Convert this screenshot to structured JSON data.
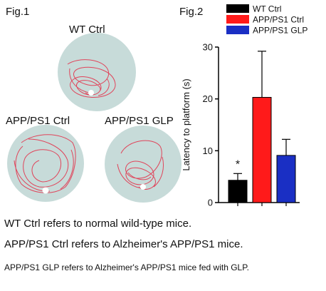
{
  "fig1": {
    "label": "Fig.1",
    "mazes": [
      {
        "title": "WT Ctrl"
      },
      {
        "title": "APP/PS1 Ctrl"
      },
      {
        "title": "APP/PS1 GLP"
      }
    ]
  },
  "fig2": {
    "label": "Fig.2"
  },
  "captions": [
    "WT Ctrl refers to normal wild-type mice.",
    "APP/PS1 Ctrl refers to Alzheimer's APP/PS1 mice.",
    "APP/PS1 GLP refers to Alzheimer's APP/PS1 mice fed with GLP."
  ],
  "colors": {
    "pool": "#c7dbd9",
    "path": "#e0445a",
    "wt": "#000000",
    "app": "#ff1a1a",
    "glp": "#1a2fc4"
  },
  "chart_data": {
    "type": "bar",
    "categories": [
      "WT Ctrl",
      "APP/PS1 Ctrl",
      "APP/PS1 GLP"
    ],
    "values": [
      4.3,
      20.3,
      9.1
    ],
    "errors": [
      1.3,
      8.9,
      3.1
    ],
    "colors": [
      "#000000",
      "#ff1a1a",
      "#1a2fc4"
    ],
    "ylabel": "Latency to platform (s)",
    "ylim": [
      0,
      30
    ],
    "yticks": [
      0,
      10,
      20,
      30
    ],
    "annotations": [
      {
        "category": "WT Ctrl",
        "text": "*"
      }
    ],
    "legend": {
      "position": "top-right",
      "entries": [
        "WT Ctrl",
        "APP/PS1 Ctrl",
        "APP/PS1 GLP"
      ]
    },
    "grid": false
  }
}
